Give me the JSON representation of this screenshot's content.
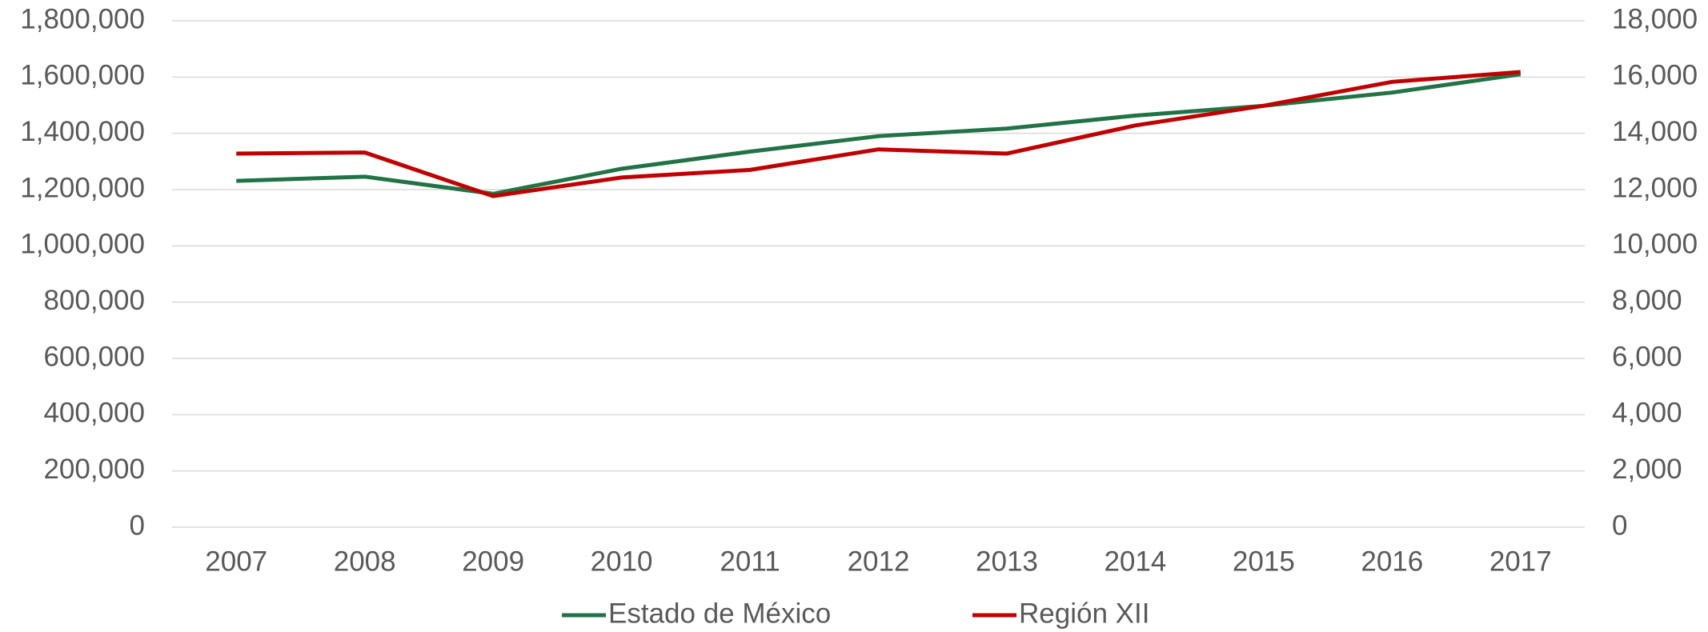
{
  "chart_data": {
    "type": "line",
    "categories": [
      "2007",
      "2008",
      "2009",
      "2010",
      "2011",
      "2012",
      "2013",
      "2014",
      "2015",
      "2016",
      "2017"
    ],
    "series": [
      {
        "name": "Estado de México",
        "color": "#217346",
        "values": [
          1231000,
          1246000,
          1185000,
          1274000,
          1335000,
          1390000,
          1417000,
          1463000,
          1498000,
          1545000,
          1610000
        ]
      },
      {
        "name": "Región XII",
        "color": "#c00000",
        "axis": "y2",
        "values": [
          13280,
          13320,
          11770,
          12430,
          12700,
          13430,
          13280,
          14280,
          14980,
          15830,
          16180
        ]
      }
    ],
    "ylim": [
      0,
      1800000
    ],
    "yticks": [
      0,
      {
        "value": 200000,
        "label": "200,000"
      },
      {
        "value": 400000,
        "label": "400,000"
      },
      {
        "value": 600000,
        "label": "600,000"
      },
      {
        "value": 800000,
        "label": "800,000"
      },
      {
        "value": 1000000,
        "label": "1,000,000"
      },
      {
        "value": 1200000,
        "label": "1,200,000"
      },
      {
        "value": 1400000,
        "label": "1,400,000"
      },
      {
        "value": 1600000,
        "label": "1,600,000"
      },
      {
        "value": 1800000,
        "label": "1,800,000"
      }
    ],
    "y2lim": [
      0,
      18000
    ],
    "y2ticks": [
      0,
      {
        "value": 2000,
        "label": "2,000"
      },
      {
        "value": 4000,
        "label": "4,000"
      },
      {
        "value": 6000,
        "label": "6,000"
      },
      {
        "value": 8000,
        "label": "8,000"
      },
      {
        "value": 10000,
        "label": "10,000"
      },
      {
        "value": 12000,
        "label": "12,000"
      },
      {
        "value": 14000,
        "label": "14,000"
      },
      {
        "value": 16000,
        "label": "16,000"
      },
      {
        "value": 18000,
        "label": "18,000"
      }
    ],
    "grid": true,
    "legend": "bottom"
  }
}
